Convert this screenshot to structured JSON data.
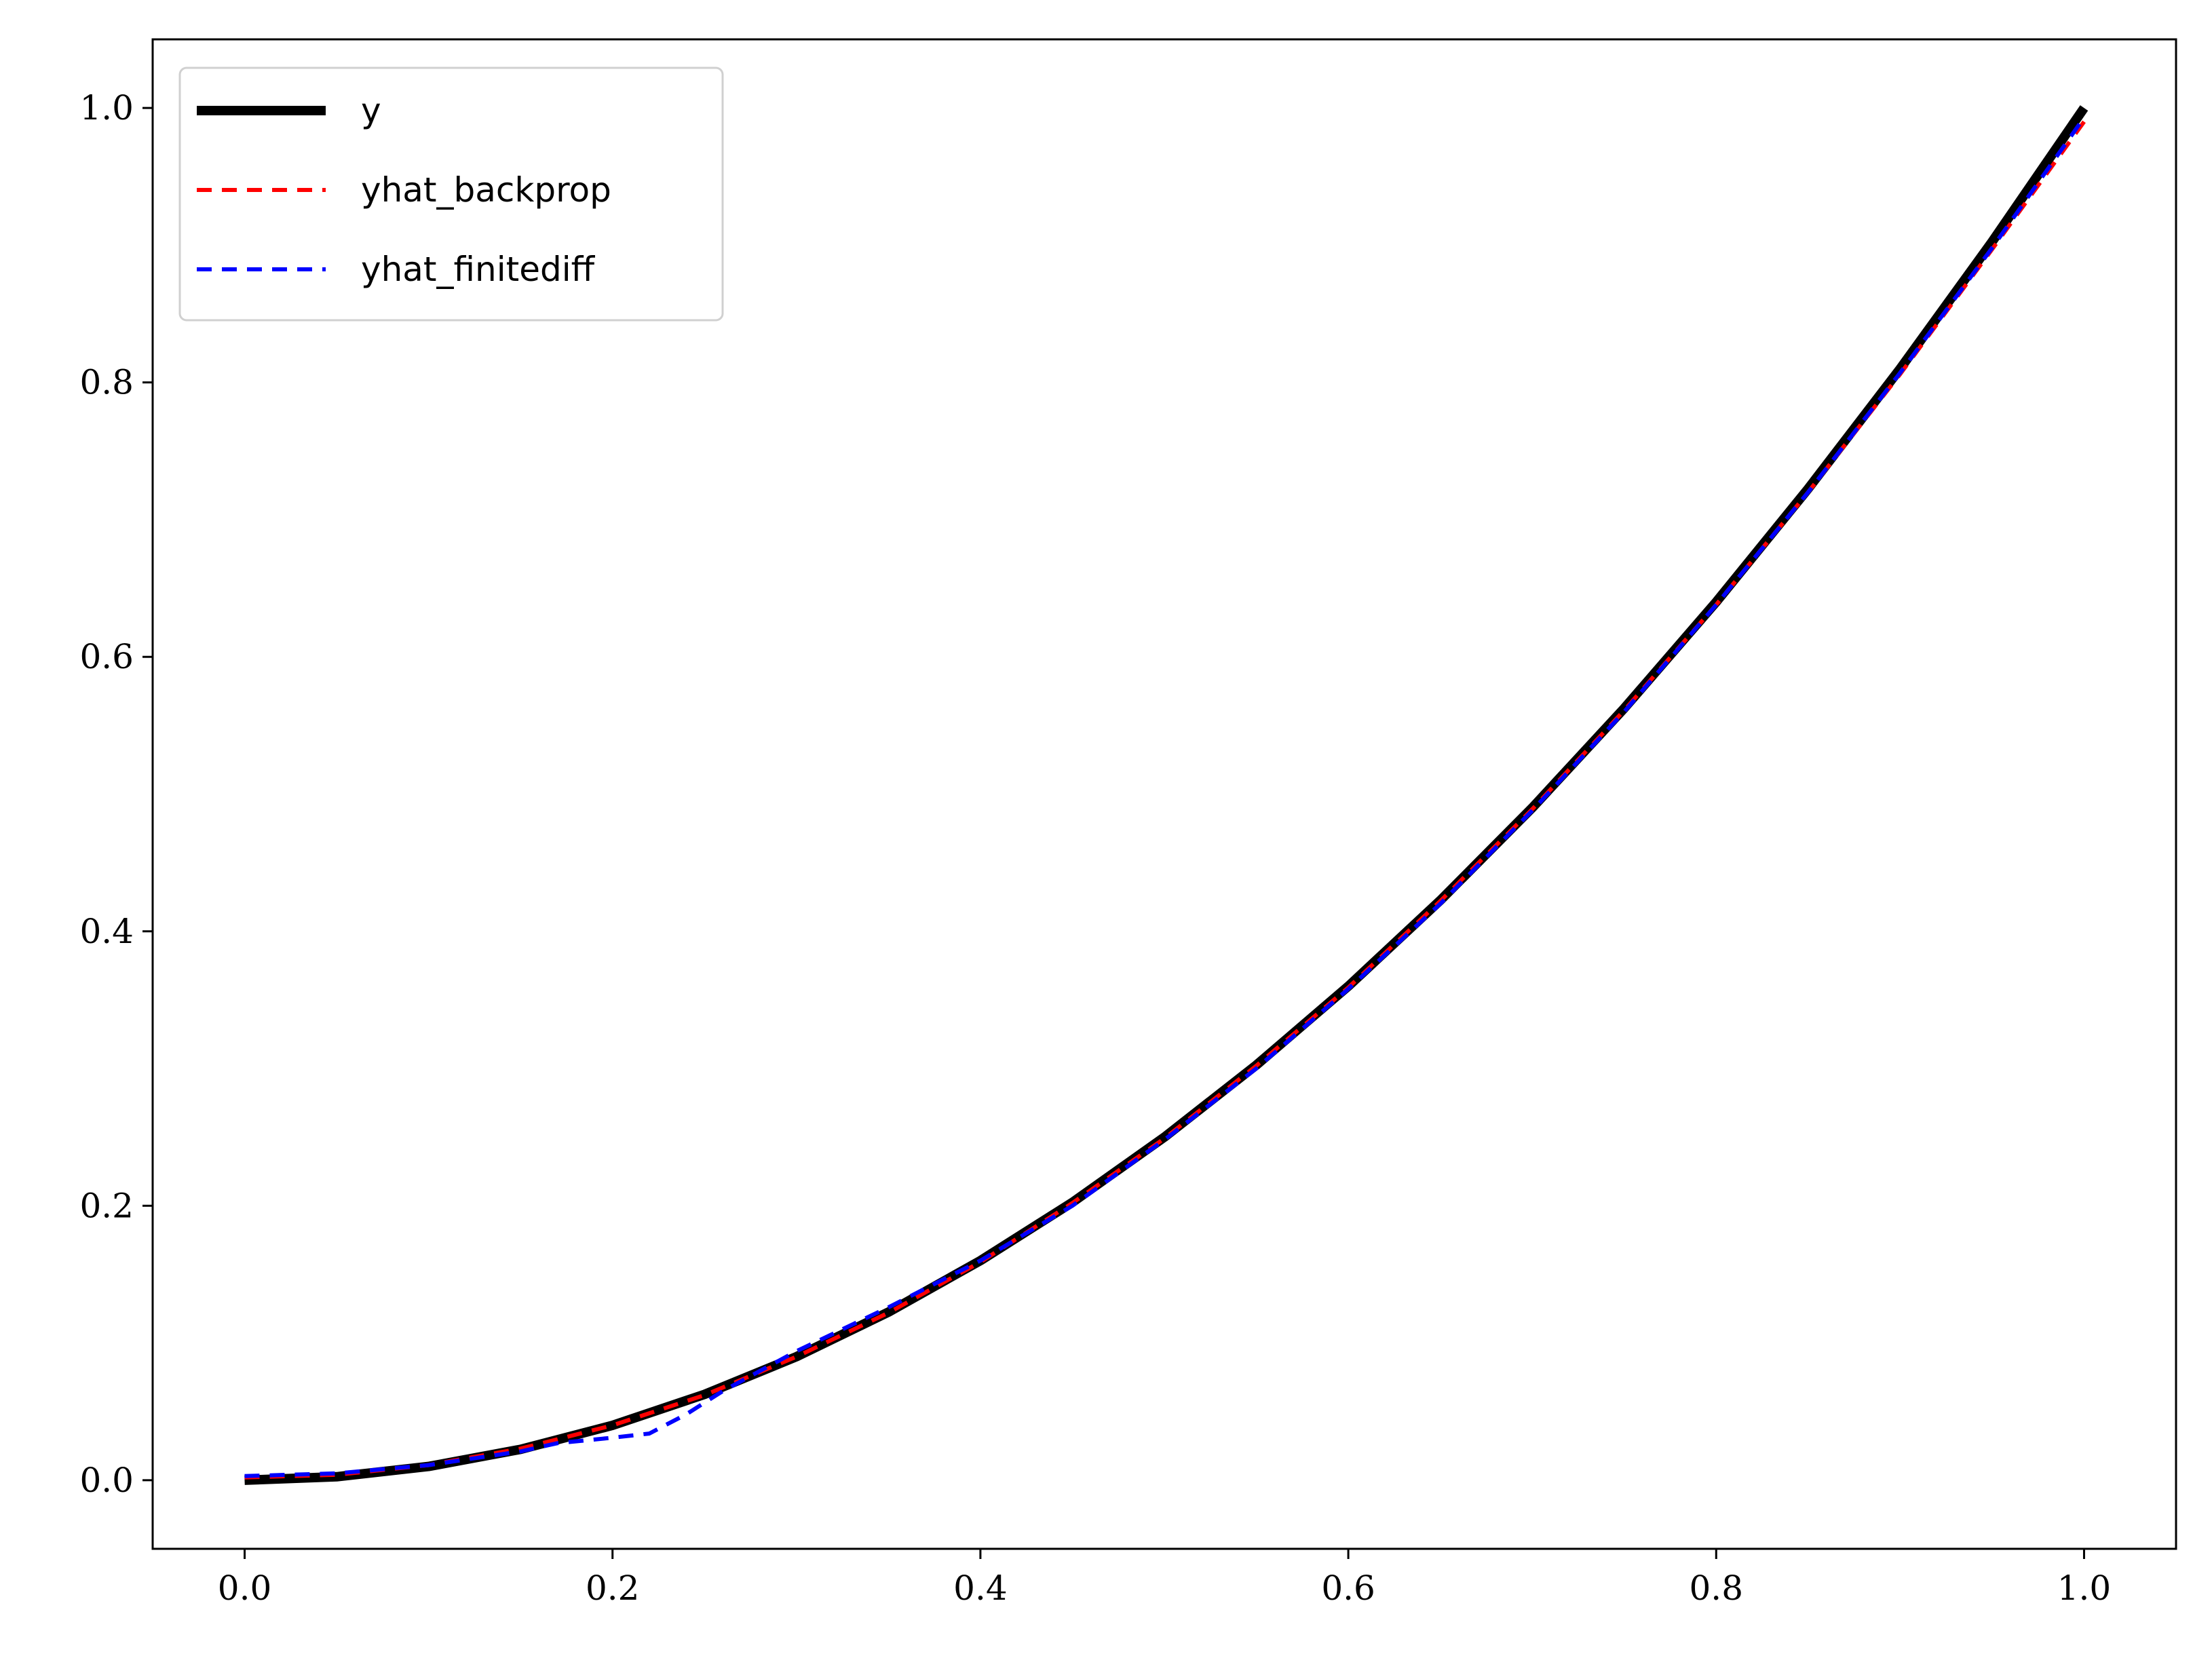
{
  "chart_data": {
    "type": "line",
    "title": "",
    "xlabel": "",
    "ylabel": "",
    "xlim": [
      -0.05,
      1.05
    ],
    "ylim": [
      -0.05,
      1.05
    ],
    "x_ticks": [
      0.0,
      0.2,
      0.4,
      0.6,
      0.8,
      1.0
    ],
    "x_tick_labels": [
      "0.0",
      "0.2",
      "0.4",
      "0.6",
      "0.8",
      "1.0"
    ],
    "y_ticks": [
      0.0,
      0.2,
      0.4,
      0.6,
      0.8,
      1.0
    ],
    "y_tick_labels": [
      "0.0",
      "0.2",
      "0.4",
      "0.6",
      "0.8",
      "1.0"
    ],
    "grid": false,
    "legend_position": "upper-left",
    "series": [
      {
        "name": "y",
        "color": "#000000",
        "style": "solid",
        "x": [
          0.0,
          0.05,
          0.1,
          0.15,
          0.2,
          0.25,
          0.3,
          0.35,
          0.4,
          0.45,
          0.5,
          0.55,
          0.6,
          0.65,
          0.7,
          0.75,
          0.8,
          0.85,
          0.9,
          0.95,
          1.0
        ],
        "values": [
          0.0,
          0.0025,
          0.01,
          0.0225,
          0.04,
          0.0625,
          0.09,
          0.1225,
          0.16,
          0.2025,
          0.25,
          0.3025,
          0.36,
          0.4225,
          0.49,
          0.5625,
          0.64,
          0.7225,
          0.81,
          0.9025,
          1.0
        ]
      },
      {
        "name": "yhat_backprop",
        "color": "#ff0000",
        "style": "dashed",
        "x": [
          0.0,
          0.05,
          0.1,
          0.15,
          0.2,
          0.25,
          0.3,
          0.35,
          0.4,
          0.45,
          0.5,
          0.55,
          0.6,
          0.65,
          0.7,
          0.75,
          0.8,
          0.85,
          0.9,
          0.95,
          1.0
        ],
        "values": [
          0.002,
          0.004,
          0.011,
          0.023,
          0.04,
          0.062,
          0.09,
          0.122,
          0.159,
          0.202,
          0.249,
          0.302,
          0.359,
          0.422,
          0.489,
          0.561,
          0.638,
          0.72,
          0.806,
          0.897,
          0.99
        ]
      },
      {
        "name": "yhat_finitediff",
        "color": "#0000ff",
        "style": "dashed",
        "x": [
          0.0,
          0.05,
          0.1,
          0.15,
          0.17,
          0.2,
          0.22,
          0.24,
          0.26,
          0.3,
          0.35,
          0.4,
          0.45,
          0.5,
          0.55,
          0.6,
          0.65,
          0.7,
          0.75,
          0.8,
          0.85,
          0.9,
          0.95,
          1.0
        ],
        "values": [
          0.003,
          0.005,
          0.011,
          0.021,
          0.027,
          0.031,
          0.034,
          0.048,
          0.065,
          0.094,
          0.126,
          0.16,
          0.2,
          0.248,
          0.3,
          0.358,
          0.42,
          0.488,
          0.56,
          0.638,
          0.72,
          0.807,
          0.898,
          0.993
        ]
      }
    ]
  }
}
